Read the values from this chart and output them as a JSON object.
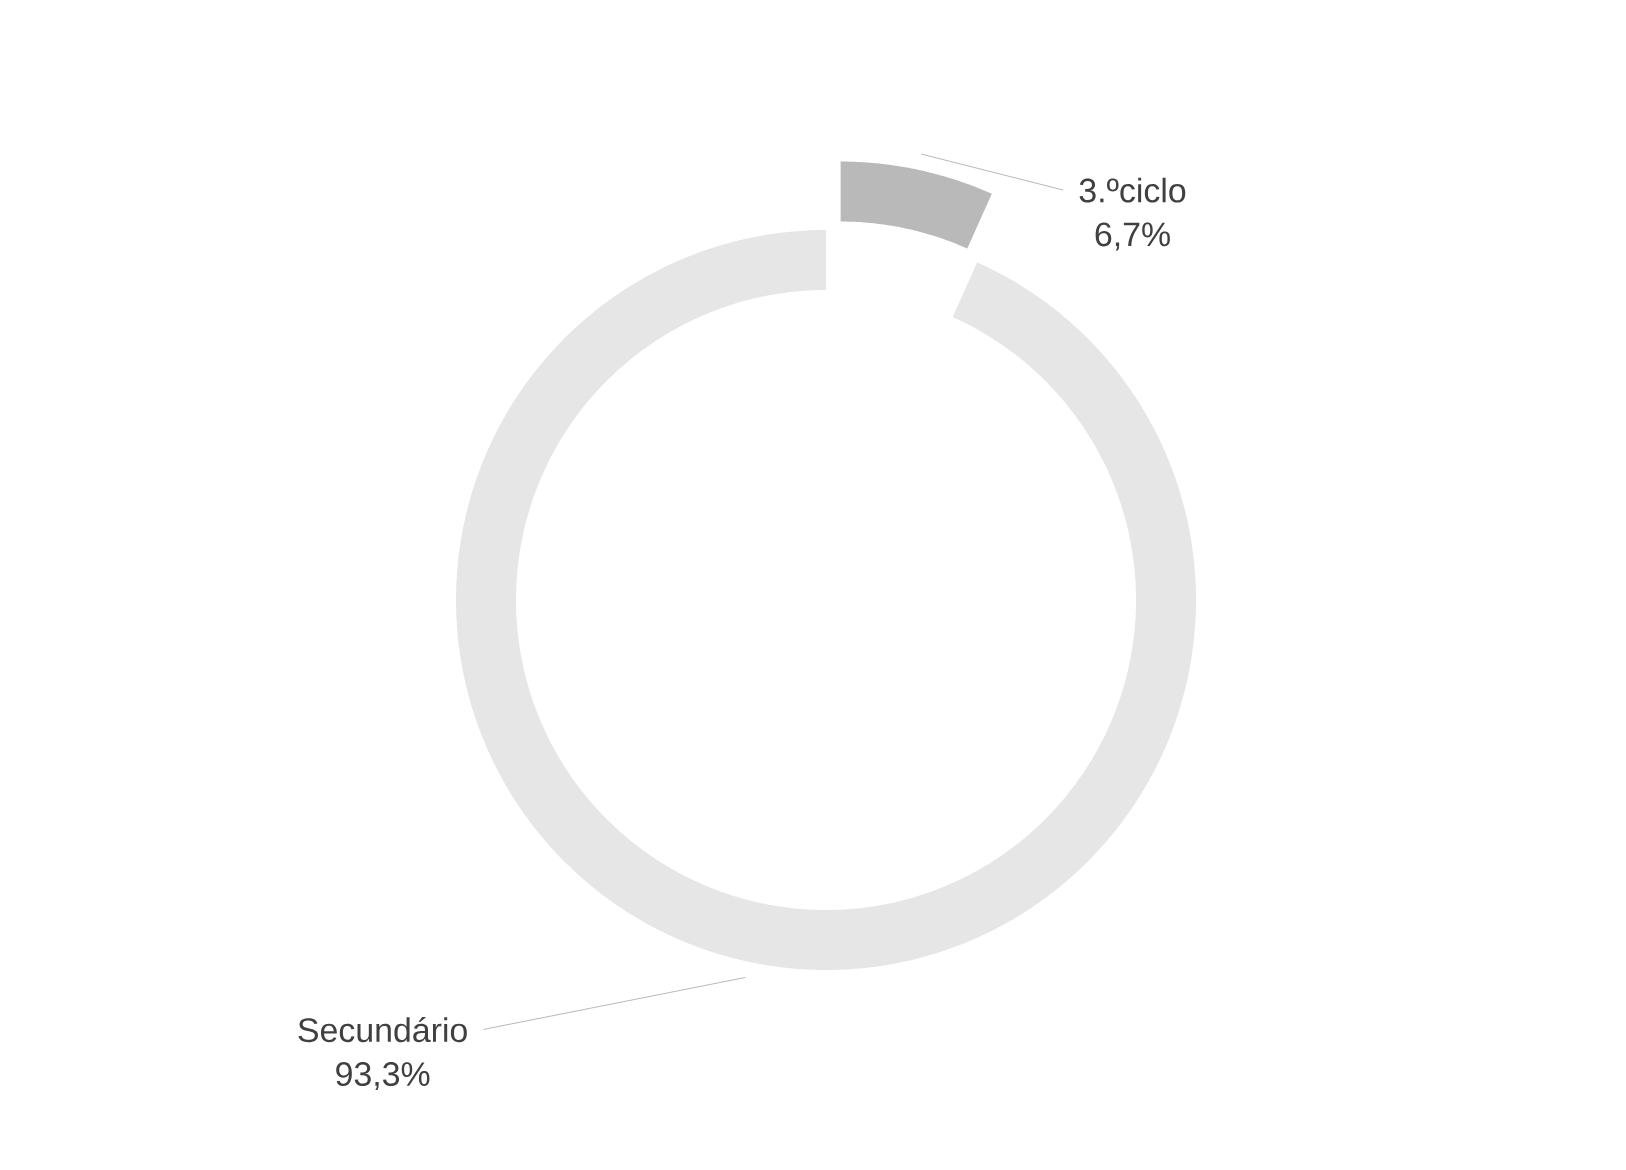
{
  "chart_data": {
    "type": "donut",
    "categories": [
      "3.ºciclo",
      "Secundário"
    ],
    "values": [
      6.7,
      93.3
    ],
    "colors": [
      "#b9b9b9",
      "#e6e6e6"
    ],
    "value_labels": [
      "6,7%",
      "93,3%"
    ]
  }
}
